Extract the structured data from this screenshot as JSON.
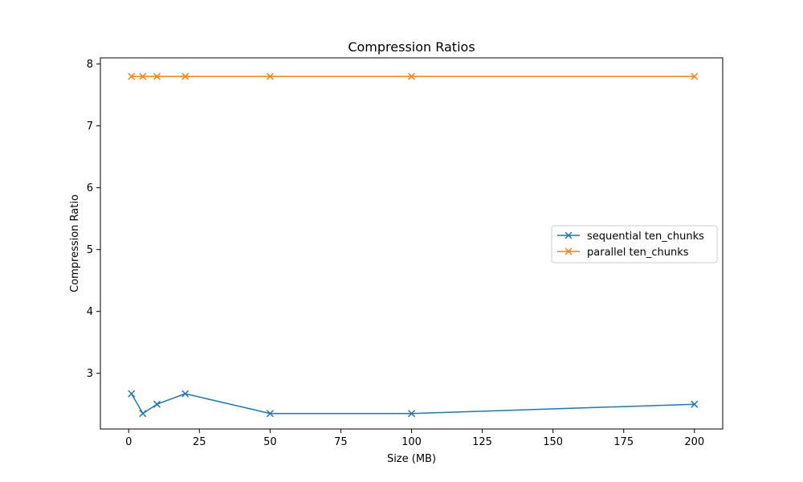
{
  "chart_data": {
    "type": "line",
    "title": "Compression Ratios",
    "xlabel": "Size (MB)",
    "ylabel": "Compression Ratio",
    "xlim": [
      -10,
      210
    ],
    "ylim": [
      2.1,
      8.1
    ],
    "xticks": [
      0,
      25,
      50,
      75,
      100,
      125,
      150,
      175,
      200
    ],
    "yticks": [
      3,
      4,
      5,
      6,
      7,
      8
    ],
    "grid": false,
    "legend_position": "center-right",
    "marker": "x",
    "x": [
      1,
      5,
      10,
      20,
      50,
      100,
      200
    ],
    "series": [
      {
        "name": "sequential ten_chunks",
        "color": "#1f77b4",
        "values": [
          2.67,
          2.35,
          2.5,
          2.67,
          2.35,
          2.35,
          2.5
        ]
      },
      {
        "name": "parallel ten_chunks",
        "color": "#ff7f0e",
        "values": [
          7.8,
          7.8,
          7.8,
          7.8,
          7.8,
          7.8,
          7.8
        ]
      }
    ]
  }
}
